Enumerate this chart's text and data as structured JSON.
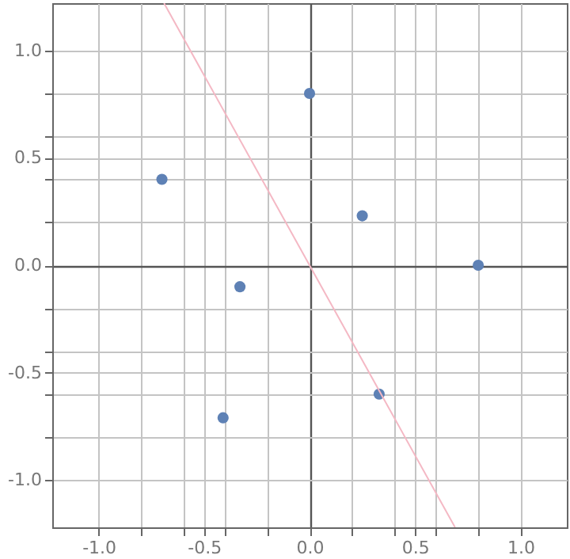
{
  "chart_data": {
    "type": "scatter",
    "xlim": [
      -1.22,
      1.22
    ],
    "ylim": [
      -1.22,
      1.22
    ],
    "xticks": [
      {
        "value": -1.0,
        "label": "-1.0"
      },
      {
        "value": -0.8,
        "label": null
      },
      {
        "value": -0.6,
        "label": null
      },
      {
        "value": -0.5,
        "label": "-0.5"
      },
      {
        "value": -0.4,
        "label": null
      },
      {
        "value": -0.2,
        "label": null
      },
      {
        "value": 0,
        "label": "0.0"
      },
      {
        "value": 0.2,
        "label": null
      },
      {
        "value": 0.4,
        "label": null
      },
      {
        "value": 0.5,
        "label": "0.5"
      },
      {
        "value": 0.6,
        "label": null
      },
      {
        "value": 0.8,
        "label": null
      },
      {
        "value": 1.0,
        "label": "1.0"
      }
    ],
    "yticks": [
      {
        "value": -1.0,
        "label": "-1.0"
      },
      {
        "value": -0.8,
        "label": null
      },
      {
        "value": -0.6,
        "label": null
      },
      {
        "value": -0.5,
        "label": "-0.5"
      },
      {
        "value": -0.4,
        "label": null
      },
      {
        "value": -0.2,
        "label": null
      },
      {
        "value": 0,
        "label": "0.0"
      },
      {
        "value": 0.2,
        "label": null
      },
      {
        "value": 0.4,
        "label": null
      },
      {
        "value": 0.5,
        "label": "0.5"
      },
      {
        "value": 0.6,
        "label": null
      },
      {
        "value": 0.8,
        "label": null
      },
      {
        "value": 1.0,
        "label": "1.0"
      }
    ],
    "grid": true,
    "marker": "circle",
    "series": [
      {
        "type": "scatter",
        "color": "#5e81b5",
        "x": [
          -0.7,
          0,
          0.25,
          0.8,
          -0.33,
          0.33,
          -0.41
        ],
        "values": [
          0.4,
          0.8,
          0.23,
          0,
          -0.1,
          -0.6,
          -0.71
        ]
      },
      {
        "type": "line",
        "color": "#f4b8c4",
        "marker": "none",
        "x": [
          -0.69,
          0.69
        ],
        "values": [
          1.22,
          -1.22
        ]
      }
    ]
  }
}
